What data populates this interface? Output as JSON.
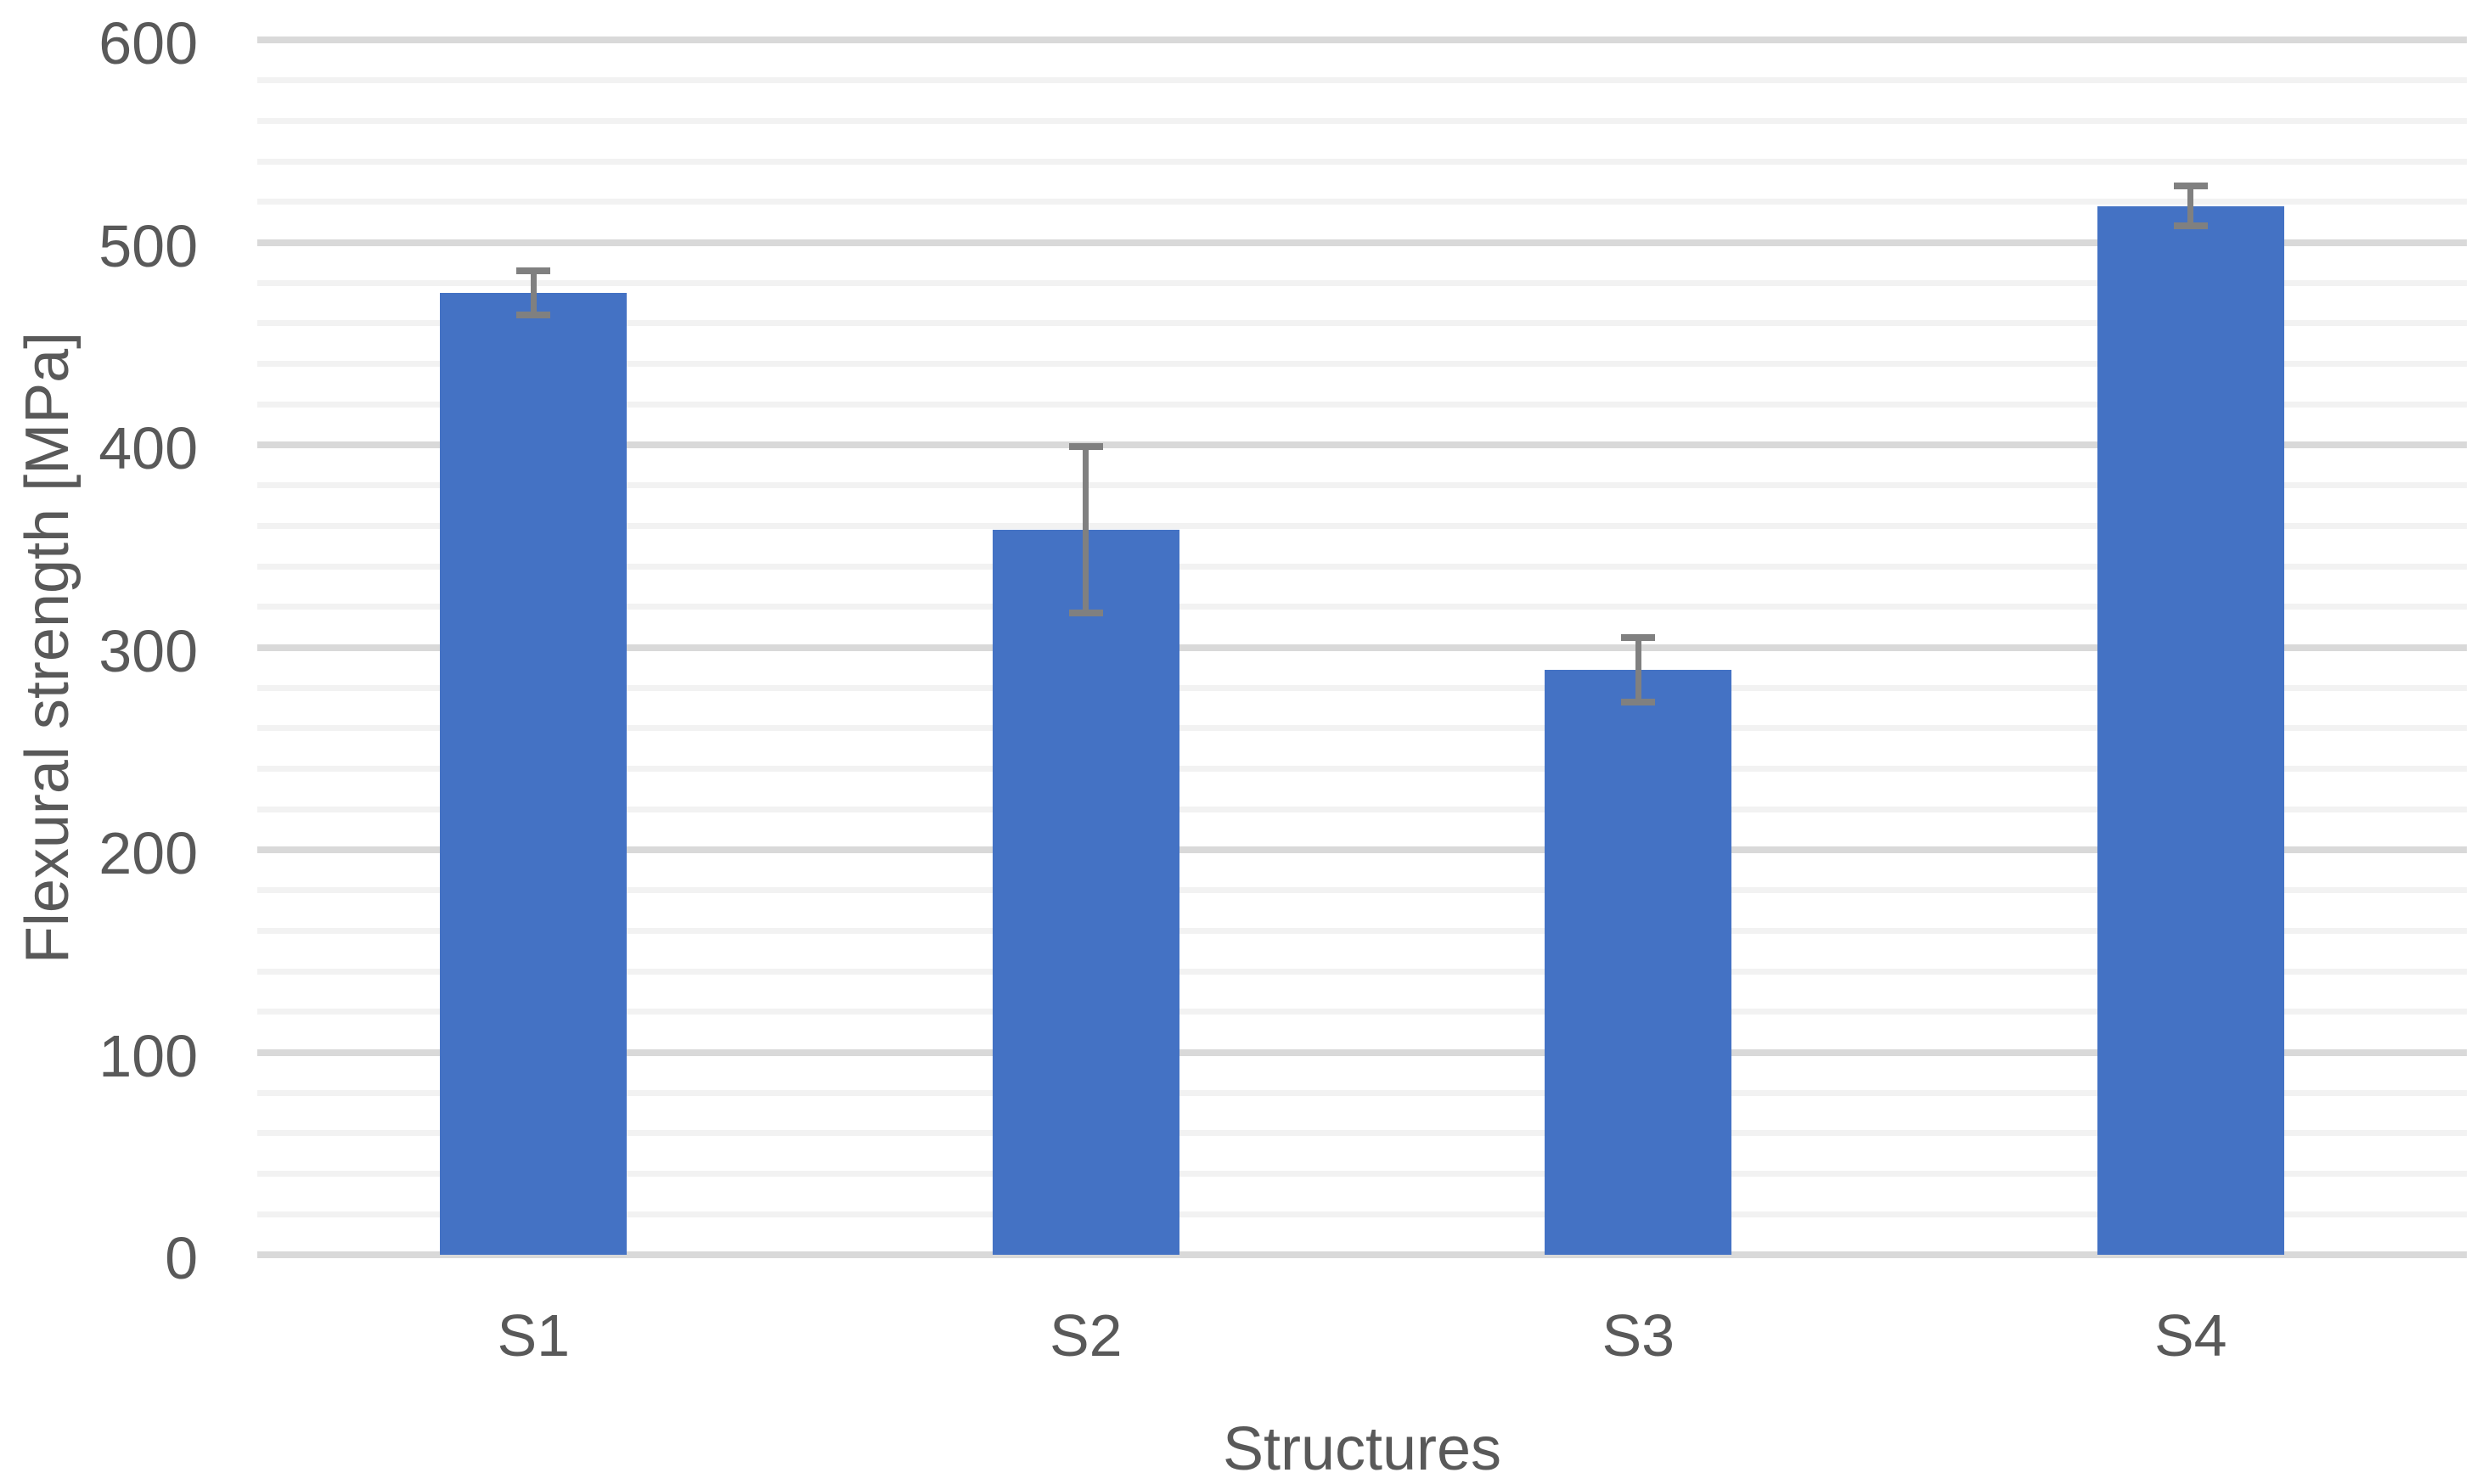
{
  "chart_data": {
    "type": "bar",
    "title": "",
    "categories": [
      "S1",
      "S2",
      "S3",
      "S4"
    ],
    "values": [
      475,
      358,
      289,
      518
    ],
    "error_bars": [
      11,
      41,
      16,
      10
    ],
    "xlabel": "Structures",
    "ylabel": "Flexural strength [MPa]",
    "ylim": [
      0,
      600
    ],
    "yticks": [
      0,
      100,
      200,
      300,
      400,
      500,
      600
    ],
    "ytick_labels": [
      "0",
      "100",
      "200",
      "300",
      "400",
      "500",
      "600"
    ],
    "minor_grid_step": 20,
    "legend": "none",
    "grid": "horizontal",
    "colors": {
      "bar": "#4472C4",
      "error_bar": "#808080",
      "axis_text": "#595959",
      "major_gridline": "#D9D9D9",
      "minor_gridline": "#F2F2F2",
      "background": "#FFFFFF"
    }
  }
}
